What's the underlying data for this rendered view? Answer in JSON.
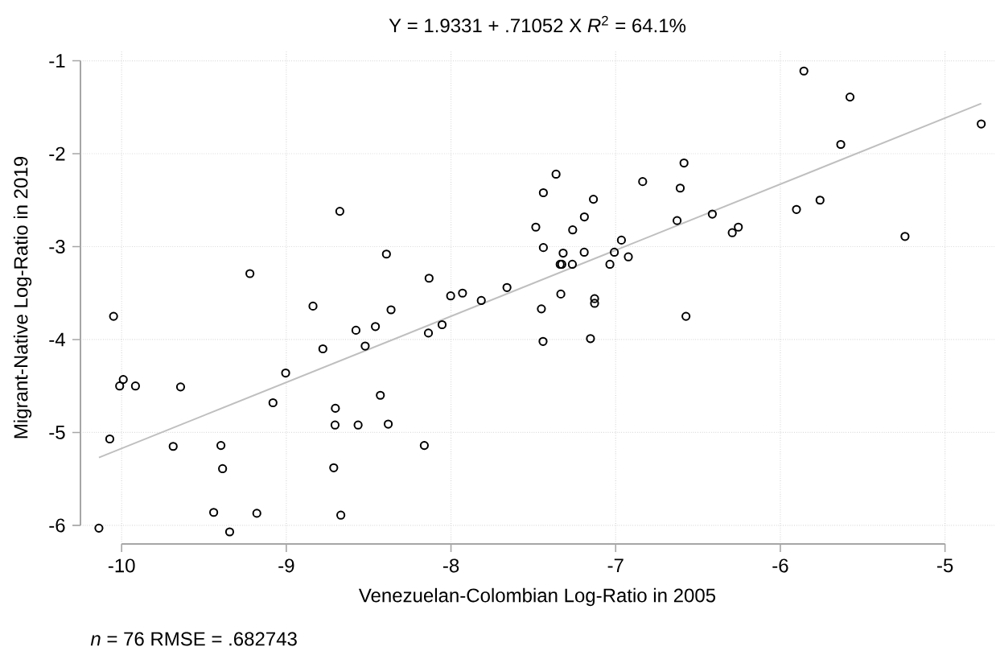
{
  "chart_data": {
    "type": "scatter",
    "title": "Y = 1.9331 + .71052 X    *R*$^{2}$ = 64.1%",
    "xlabel": "Venezuelan-Colombian Log-Ratio in 2005",
    "ylabel": "Migrant-Native Log-Ratio in 2019",
    "annotations": [
      "*n* = 76    RMSE =  .682743"
    ],
    "series": [
      {
        "color": "#000000",
        "marker": "circle",
        "x": [
          -10.138,
          -10.049,
          -9.99,
          -10.012,
          -9.916,
          -9.642,
          -10.072,
          -9.687,
          -9.397,
          -9.387,
          -9.441,
          -9.344,
          -9.179,
          -9.221,
          -8.838,
          -8.675,
          -8.392,
          -8.577,
          -8.459,
          -8.521,
          -8.778,
          -9.004,
          -9.081,
          -8.429,
          -8.702,
          -8.704,
          -8.564,
          -8.381,
          -8.712,
          -8.669,
          -8.133,
          -8.364,
          -8.137,
          -8.054,
          -8.002,
          -7.93,
          -7.816,
          -7.66,
          -8.162,
          -7.362,
          -7.439,
          -7.135,
          -7.19,
          -7.485,
          -7.261,
          -7.439,
          -7.319,
          -7.191,
          -7.337,
          -7.327,
          -7.263,
          -7.333,
          -7.451,
          -7.441,
          -7.128,
          -7.128,
          -7.153,
          -7.035,
          -7.008,
          -6.965,
          -6.923,
          -6.836,
          -6.585,
          -6.608,
          -6.627,
          -6.573,
          -6.413,
          -6.292,
          -6.255,
          -5.857,
          -5.577,
          -5.633,
          -5.902,
          -5.759,
          -5.243,
          -4.78
        ],
        "values": [
          -6.03,
          -3.75,
          -4.43,
          -4.5,
          -4.5,
          -4.51,
          -5.07,
          -5.15,
          -5.14,
          -5.39,
          -5.86,
          -6.07,
          -5.87,
          -3.29,
          -3.64,
          -2.62,
          -3.08,
          -3.9,
          -3.86,
          -4.07,
          -4.1,
          -4.36,
          -4.68,
          -4.6,
          -4.74,
          -4.92,
          -4.92,
          -4.91,
          -5.38,
          -5.89,
          -3.34,
          -3.68,
          -3.93,
          -3.84,
          -3.53,
          -3.5,
          -3.58,
          -3.44,
          -5.14,
          -2.22,
          -2.42,
          -2.49,
          -2.68,
          -2.79,
          -2.82,
          -3.01,
          -3.07,
          -3.06,
          -3.19,
          -3.19,
          -3.19,
          -3.51,
          -3.67,
          -4.02,
          -3.56,
          -3.61,
          -3.99,
          -3.19,
          -3.06,
          -2.93,
          -3.11,
          -2.3,
          -2.1,
          -2.37,
          -2.72,
          -3.75,
          -2.65,
          -2.85,
          -2.79,
          -1.11,
          -1.39,
          -1.9,
          -2.6,
          -2.5,
          -2.89,
          -1.68
        ]
      },
      {
        "type": "line",
        "color": "#bfbfbf",
        "marker": "none",
        "x": [
          -10.138,
          -4.78
        ],
        "values": [
          -5.27,
          -1.46
        ]
      }
    ],
    "xlim": [
      -10.25,
      -4.7
    ],
    "ylim": [
      -6.2,
      -0.9
    ],
    "xticks": [
      -10,
      -9,
      -8,
      -7,
      -6,
      -5
    ],
    "yticks": [
      -6,
      -5,
      -4,
      -3,
      -2,
      -1
    ],
    "grid": true
  }
}
